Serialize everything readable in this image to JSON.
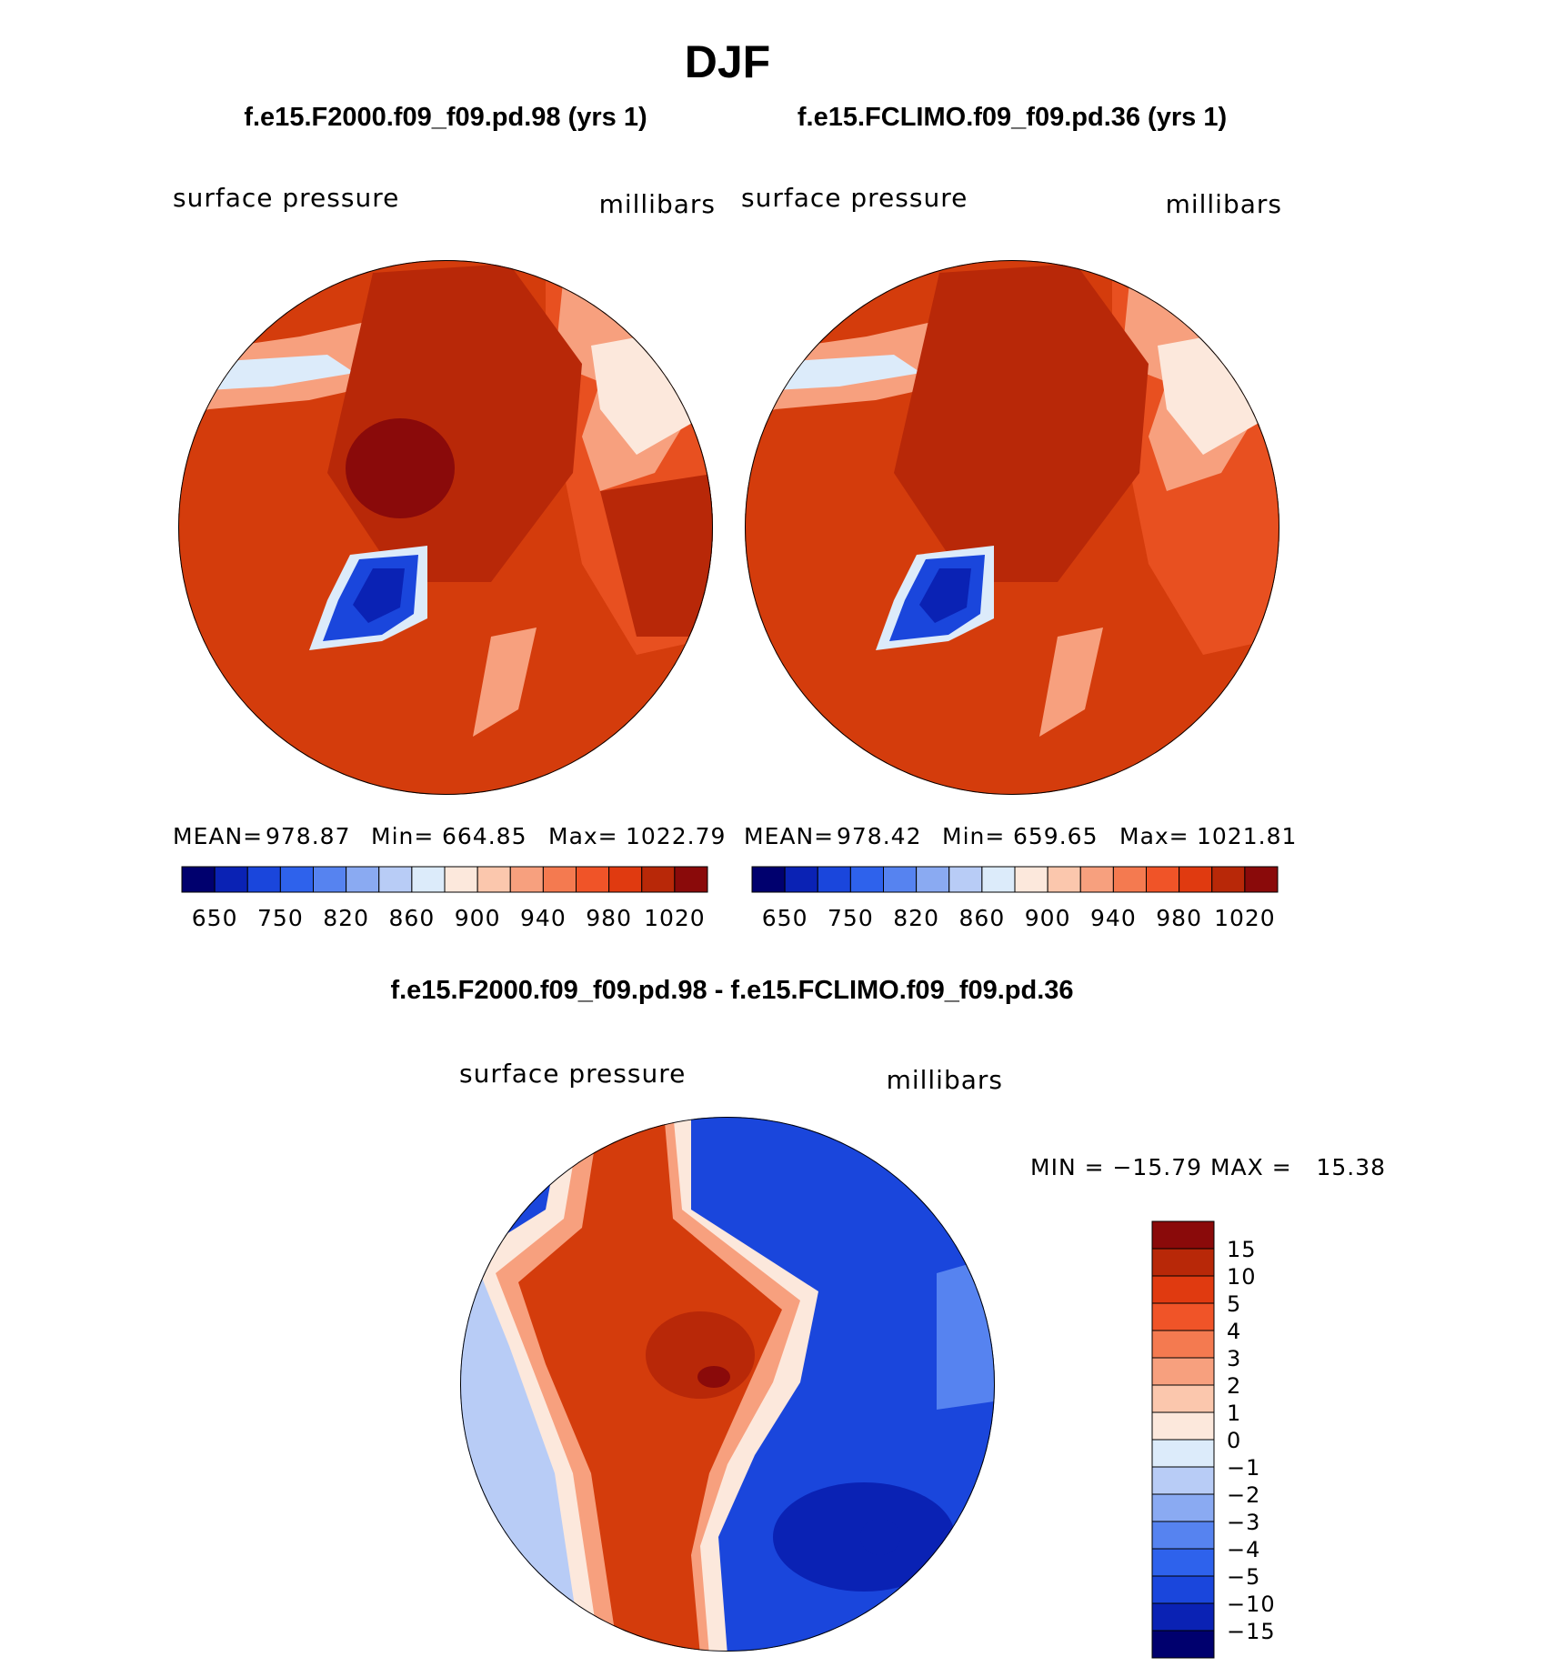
{
  "title": "DJF",
  "panels": [
    {
      "case": "f.e15.F2000.f09_f09.pd.98 (yrs 1)",
      "variable": "surface pressure",
      "units": "millibars",
      "stats": {
        "mean_label": "MEAN=",
        "mean": "978.87",
        "min_label": "Min=",
        "min": "664.85",
        "max_label": "Max=",
        "max": "1022.79"
      }
    },
    {
      "case": "f.e15.FCLIMO.f09_f09.pd.36 (yrs 1)",
      "variable": "surface pressure",
      "units": "millibars",
      "stats": {
        "mean_label": "MEAN=",
        "mean": "978.42",
        "min_label": "Min=",
        "min": "659.65",
        "max_label": "Max=",
        "max": "1021.81"
      }
    }
  ],
  "abs_colorbar": {
    "colors": [
      "#00006e",
      "#0a22b4",
      "#1a46dc",
      "#2e62ec",
      "#5683f0",
      "#8aaaf2",
      "#b8ccf6",
      "#dcebfa",
      "#fce8dc",
      "#fbc7ad",
      "#f7a07e",
      "#f47a50",
      "#f05428",
      "#e03a10",
      "#b82808",
      "#8a0a0a"
    ],
    "labels": [
      "650",
      "750",
      "820",
      "860",
      "900",
      "940",
      "980",
      "1020"
    ]
  },
  "diff_panel": {
    "title": "f.e15.F2000.f09_f09.pd.98 - f.e15.FCLIMO.f09_f09.pd.36",
    "variable": "surface pressure",
    "units": "millibars",
    "stats_text": "MIN = −15.79 MAX =   15.38"
  },
  "diff_colorbar": {
    "colors": [
      "#8a0a0a",
      "#b82808",
      "#e03a10",
      "#f05428",
      "#f47a50",
      "#f7a07e",
      "#fbc7ad",
      "#fce8dc",
      "#dcebfa",
      "#b8ccf6",
      "#8aaaf2",
      "#5683f0",
      "#2e62ec",
      "#1a46dc",
      "#0a22b4",
      "#00006e"
    ],
    "labels": [
      "15",
      "10",
      "5",
      "4",
      "3",
      "2",
      "1",
      "0",
      "−1",
      "−2",
      "−3",
      "−4",
      "−5",
      "−10",
      "−15"
    ]
  },
  "fill_colors": {
    "base": "#d43c0c",
    "dark": "#b82808",
    "darkest": "#8a0a0a",
    "mid": "#e85020",
    "light": "#f7a07e",
    "pale": "#fce8dc",
    "ice1": "#0a22b4",
    "ice2": "#1a46dc",
    "ice_edge": "#dcebfa",
    "blue": "#1a46dc",
    "blue_dark": "#0a22b4",
    "blue_light": "#5683f0",
    "blue_pale": "#b8ccf6"
  }
}
